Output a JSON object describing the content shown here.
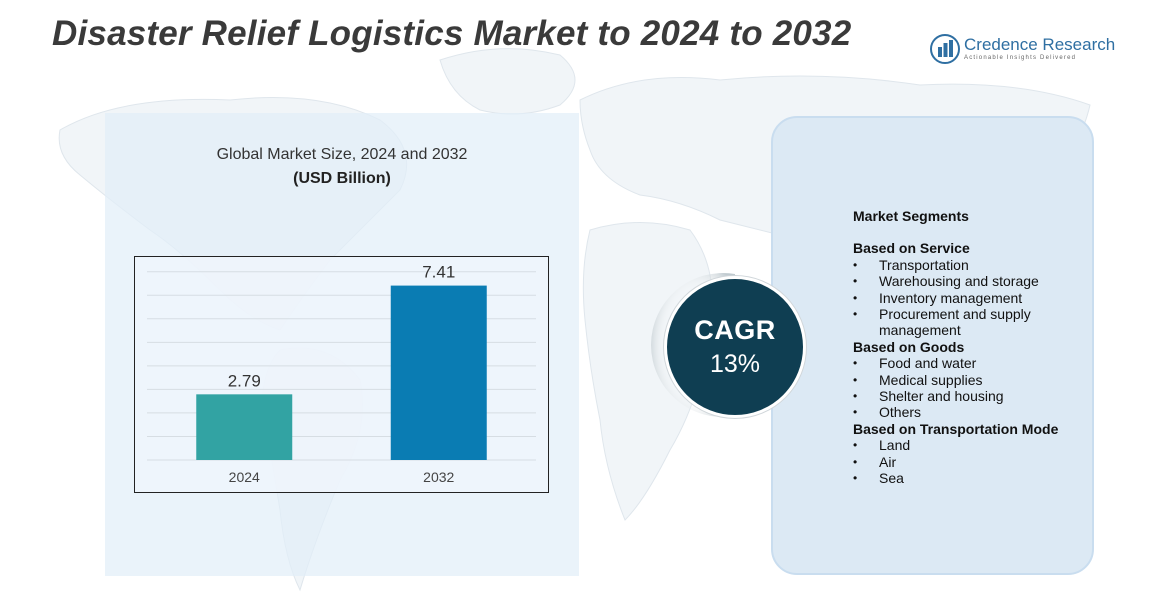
{
  "title": "Disaster Relief Logistics Market to 2024 to 2032",
  "brand": {
    "name": "Credence Research",
    "tagline": "Actionable Insights Delivered",
    "color": "#2f6fa2",
    "icon": "bar-chart-logo-icon"
  },
  "chart_heading": "Global Market Size,  2024 and 2032",
  "chart_unit": "(USD Billion)",
  "chart_data": {
    "type": "bar",
    "categories": [
      "2024",
      "2032"
    ],
    "values": [
      2.79,
      7.41
    ],
    "value_labels": [
      "2.79",
      "7.41"
    ],
    "colors": [
      "#32a3a3",
      "#0a7cb3"
    ],
    "ylim": [
      0,
      8.2
    ],
    "grid": true,
    "legend": "none",
    "xlabel": "",
    "ylabel": ""
  },
  "cagr": {
    "label": "CAGR",
    "value": "13%",
    "color": "#0f3e52"
  },
  "segments": {
    "title": "Market Segments",
    "groups": [
      {
        "title": "Based on Service",
        "items": [
          "Transportation",
          "Warehousing and storage",
          "Inventory management",
          "Procurement and supply management"
        ]
      },
      {
        "title": "Based on Goods",
        "items": [
          "Food and water",
          "Medical supplies",
          "Shelter and housing",
          "Others"
        ]
      },
      {
        "title": "Based on Transportation Mode",
        "items": [
          "Land",
          "Air",
          "Sea"
        ]
      }
    ]
  }
}
